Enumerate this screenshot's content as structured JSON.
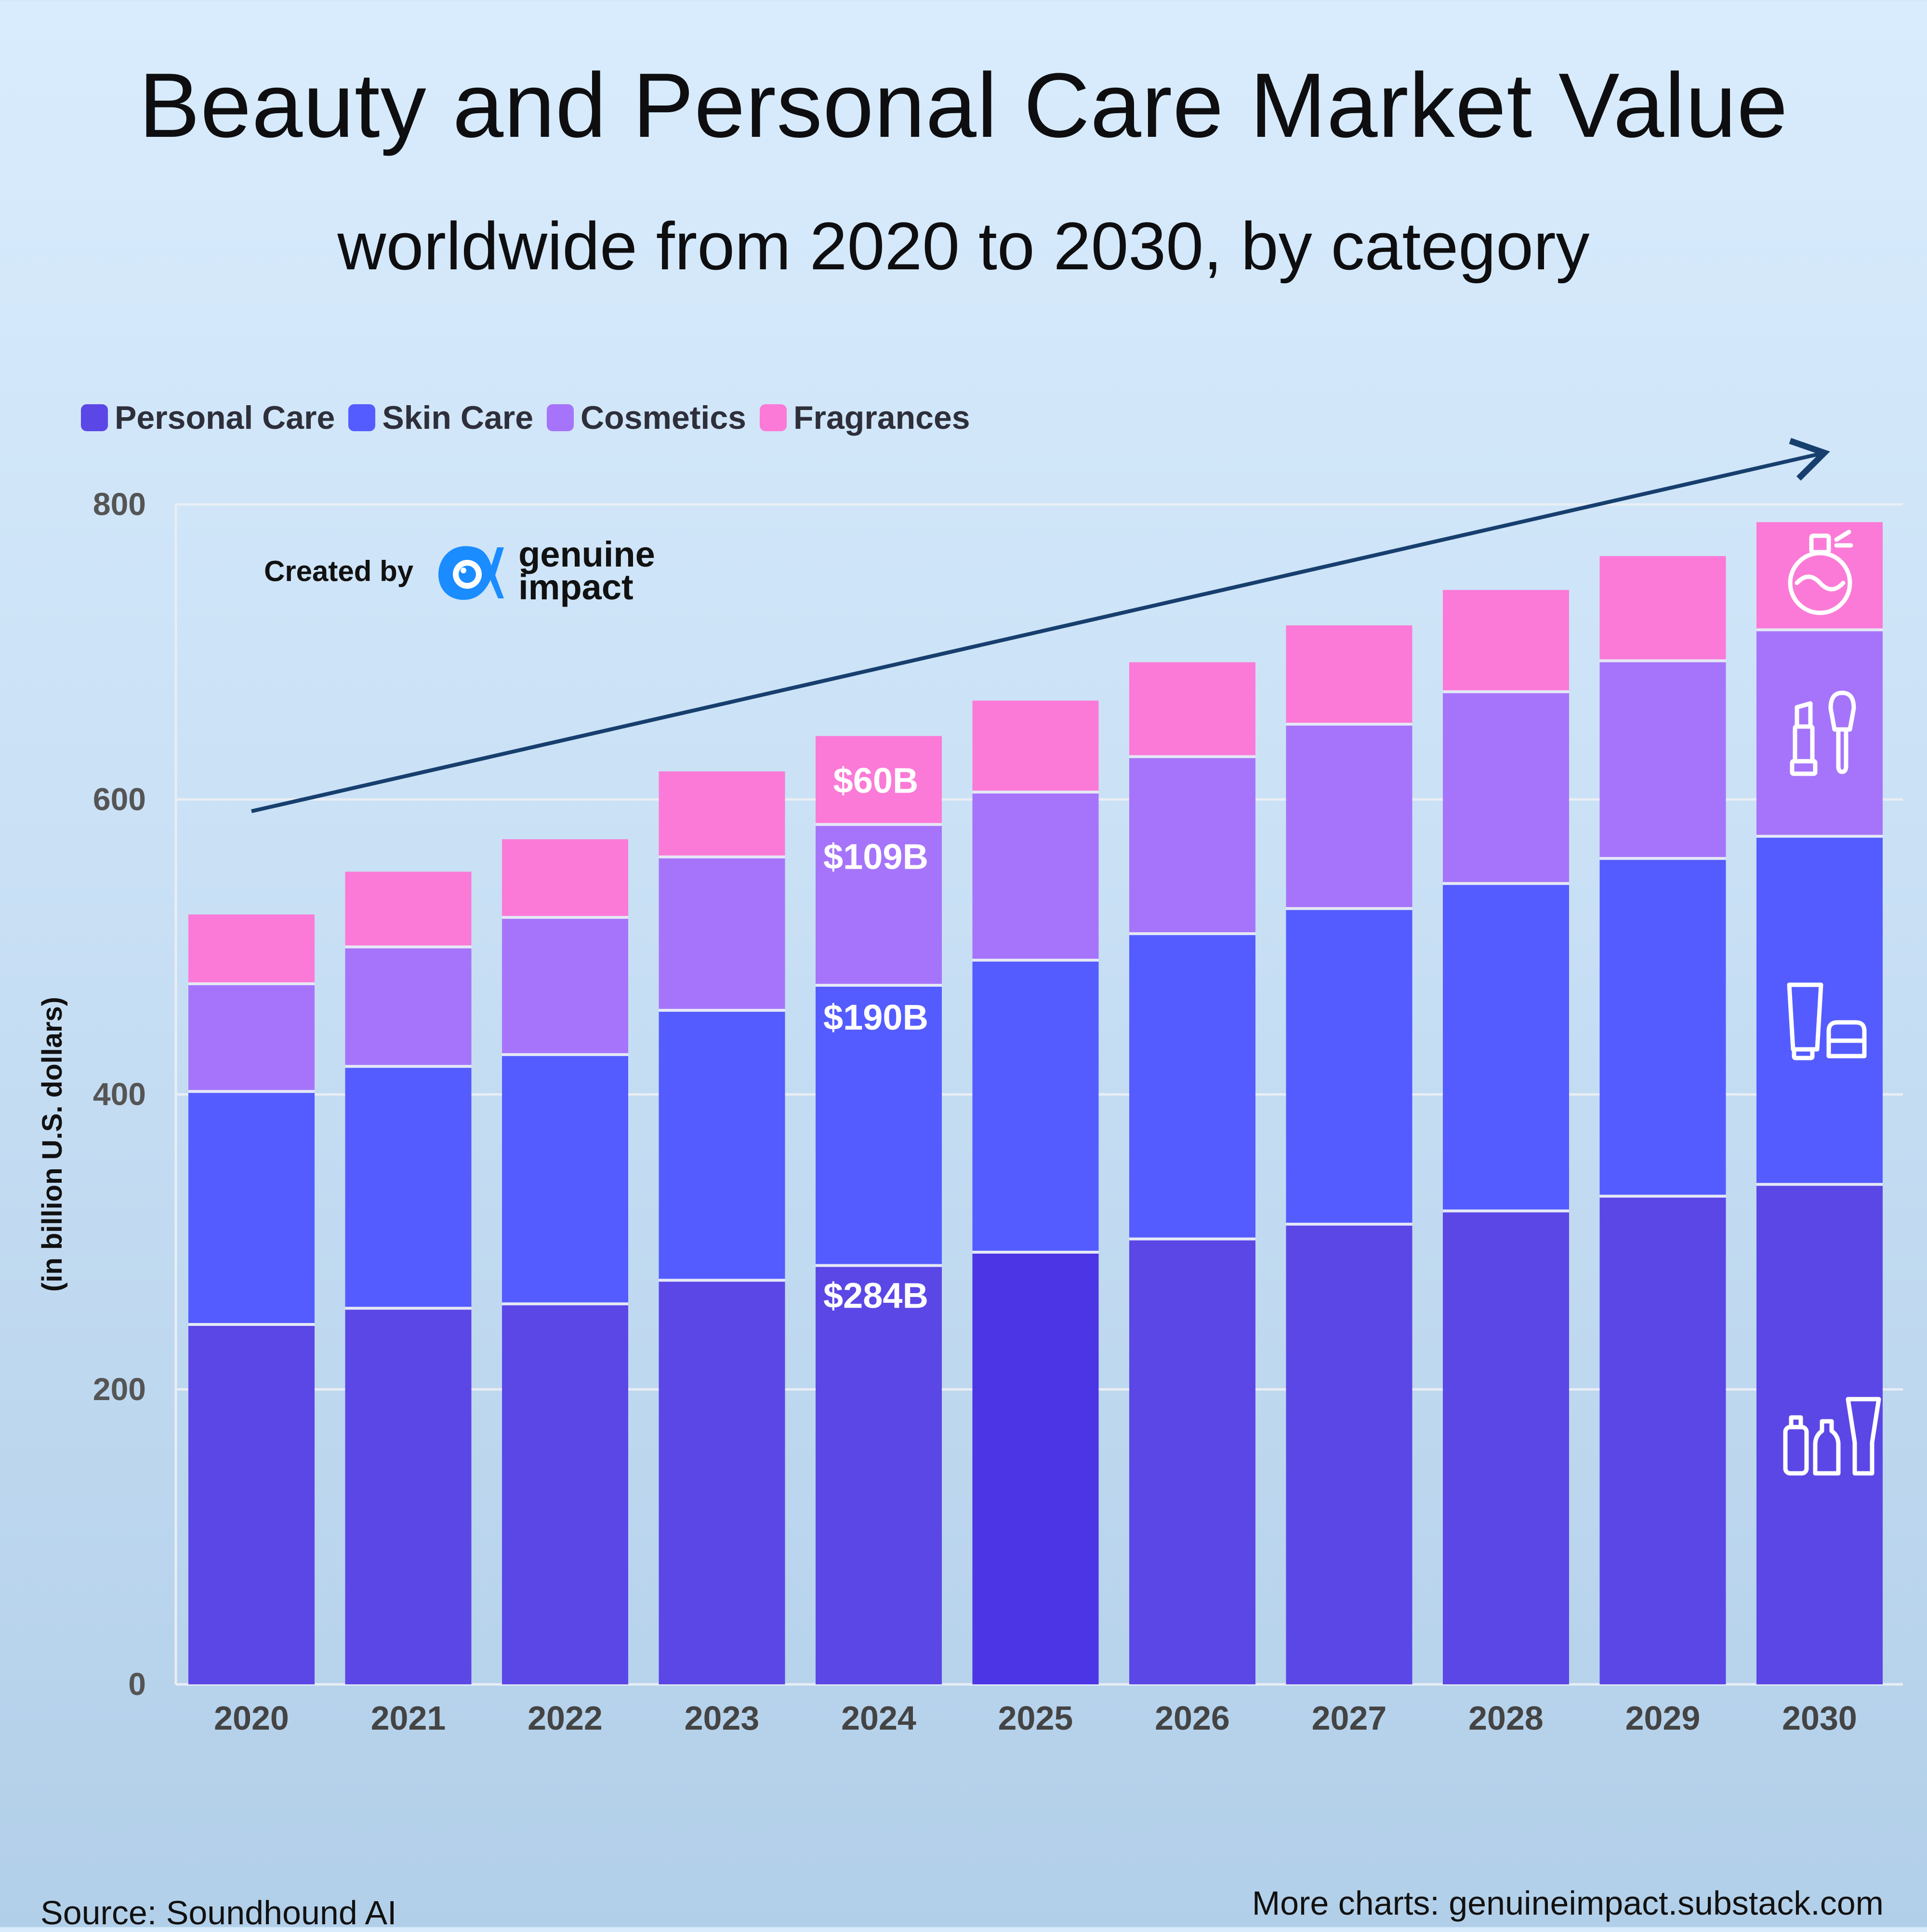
{
  "header": {
    "title": "Beauty and Personal Care Market Value",
    "subtitle": "worldwide from 2020 to 2030, by category"
  },
  "credit": {
    "prefix": "Created by",
    "brand_line1": "genuine",
    "brand_line2": "impact",
    "brand_color": "#1a8cff"
  },
  "footer": {
    "source": "Source: Soundhound AI",
    "more": "More charts: genuineimpact.substack.com"
  },
  "chart_data": {
    "type": "bar",
    "stacked": true,
    "categories": [
      "2020",
      "2021",
      "2022",
      "2023",
      "2024",
      "2025",
      "2026",
      "2027",
      "2028",
      "2029",
      "2030"
    ],
    "ylabel": "(in billion U.S. dollars)",
    "ylim": [
      0,
      800
    ],
    "yticks": [
      0,
      200,
      400,
      600,
      800
    ],
    "grid": true,
    "legend_position": "top-left",
    "series": [
      {
        "name": "Personal Care",
        "color": "#5b47e6",
        "values": [
          244,
          255,
          258,
          274,
          284,
          293,
          302,
          312,
          321,
          331,
          339
        ]
      },
      {
        "name": "Skin Care",
        "color": "#545cff",
        "values": [
          158,
          164,
          169,
          183,
          190,
          198,
          207,
          214,
          222,
          229,
          236
        ]
      },
      {
        "name": "Cosmetics",
        "color": "#a674fa",
        "values": [
          73,
          81,
          93,
          104,
          109,
          114,
          120,
          125,
          130,
          134,
          140
        ]
      },
      {
        "name": "Fragrances",
        "color": "#fb7ad7",
        "values": [
          47,
          51,
          53,
          58,
          60,
          62,
          64,
          67,
          69,
          71,
          73
        ]
      }
    ],
    "data_labels": {
      "category": "2024",
      "labels": [
        "$284B",
        "$190B",
        "$109B",
        "$60B"
      ]
    },
    "highlight": {
      "category": "2025",
      "series": "Personal Care",
      "color": "#4c35e4"
    },
    "trend_arrow": {
      "from": [
        "2020",
        592
      ],
      "to": [
        "2030",
        835
      ],
      "color": "#173f6e"
    },
    "icons_2030": [
      "body-care-bottles-icon",
      "skin-care-tube-icon",
      "makeup-lipstick-brush-icon",
      "perfume-bottle-icon"
    ]
  }
}
